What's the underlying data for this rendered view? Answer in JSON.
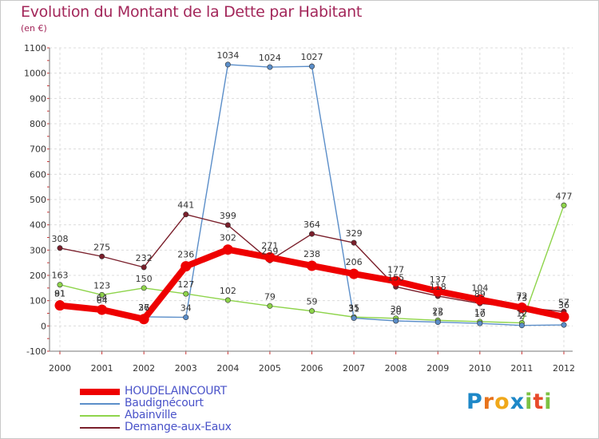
{
  "header": {
    "title": "Evolution du Montant de la Dette par Habitant",
    "unit": "(en €)"
  },
  "logo": {
    "letters": [
      "P",
      "r",
      "o",
      "x",
      "i",
      "t",
      "i"
    ],
    "colors": [
      "#1e88c8",
      "#e8731c",
      "#f0a81a",
      "#1e88c8",
      "#7cc243",
      "#e84a2a",
      "#7cc243"
    ]
  },
  "chart_data": {
    "type": "line",
    "title": "Evolution du Montant de la Dette par Habitant",
    "ylabel": "(en €)",
    "xlabel": "",
    "x": [
      "2000",
      "2001",
      "2002",
      "2003",
      "2004",
      "2005",
      "2006",
      "2007",
      "2008",
      "2009",
      "2010",
      "2011",
      "2012"
    ],
    "ylim": [
      -100,
      1100
    ],
    "yticks": [
      "-100",
      "0",
      "100",
      "200",
      "300",
      "400",
      "500",
      "600",
      "700",
      "800",
      "900",
      "1000",
      "1100"
    ],
    "grid": true,
    "series": [
      {
        "name": "HOUDELAINCOURT",
        "color": "#ee0000",
        "values": [
          81,
          64,
          27,
          236,
          302,
          271,
          238,
          206,
          177,
          137,
          104,
          72,
          36
        ],
        "labels": [
          "81",
          "64",
          "27",
          "236",
          "302",
          "271",
          "238",
          "206",
          "177",
          "137",
          "104",
          "72",
          "36"
        ]
      },
      {
        "name": "Baudignécourt",
        "color": "#5b8ec9",
        "values": [
          91,
          64,
          36,
          34,
          1034,
          1024,
          1027,
          31,
          20,
          15,
          10,
          2,
          4
        ],
        "labels": [
          "91",
          "64",
          "36",
          "34",
          "1034",
          "1024",
          "1027",
          "31",
          "20",
          "15",
          "10",
          "2",
          ""
        ]
      },
      {
        "name": "Abainville",
        "color": "#8ed44b",
        "values": [
          163,
          123,
          150,
          127,
          102,
          79,
          59,
          35,
          30,
          22,
          17,
          12,
          477
        ],
        "labels": [
          "163",
          "123",
          "150",
          "127",
          "102",
          "79",
          "59",
          "35",
          "30",
          "22",
          "17",
          "12",
          "477"
        ]
      },
      {
        "name": "Demange-aux-Eaux",
        "color": "#7a1f2b",
        "values": [
          308,
          275,
          232,
          441,
          399,
          259,
          364,
          329,
          155,
          118,
          89,
          73,
          57
        ],
        "labels": [
          "308",
          "275",
          "232",
          "441",
          "399",
          "259",
          "364",
          "329",
          "155",
          "118",
          "89",
          "73",
          "57"
        ]
      }
    ]
  }
}
